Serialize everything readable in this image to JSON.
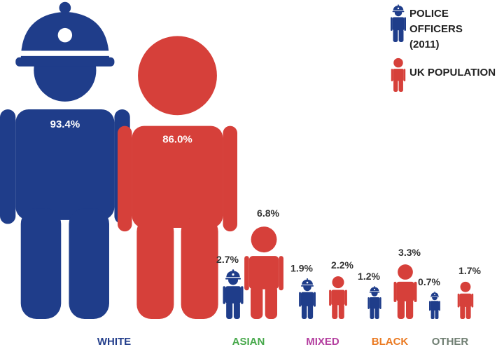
{
  "chart_data": {
    "type": "bar",
    "categories": [
      "WHITE",
      "ASIAN",
      "MIXED",
      "BLACK",
      "OTHER"
    ],
    "category_colors": [
      "#233e8b",
      "#46a84a",
      "#b440a0",
      "#ea7a22",
      "#6f7e72"
    ],
    "series": [
      {
        "name_lines": [
          "POLICE OFFICERS",
          "(2011)"
        ],
        "color": "#1f3d8a",
        "values": [
          93.4,
          2.7,
          1.9,
          1.2,
          0.7
        ],
        "labels": [
          "93.4%",
          "2.7%",
          "1.9%",
          "1.2%",
          "0.7%"
        ],
        "figure": "police-officer-with-helmet"
      },
      {
        "name_lines": [
          "UK POPULATION"
        ],
        "color": "#d6403a",
        "values": [
          86.0,
          6.8,
          2.2,
          3.3,
          1.7
        ],
        "labels": [
          "86.0%",
          "6.8%",
          "2.2%",
          "3.3%",
          "1.7%"
        ],
        "figure": "person"
      }
    ],
    "legend_position": "top-right",
    "grid": false
  }
}
